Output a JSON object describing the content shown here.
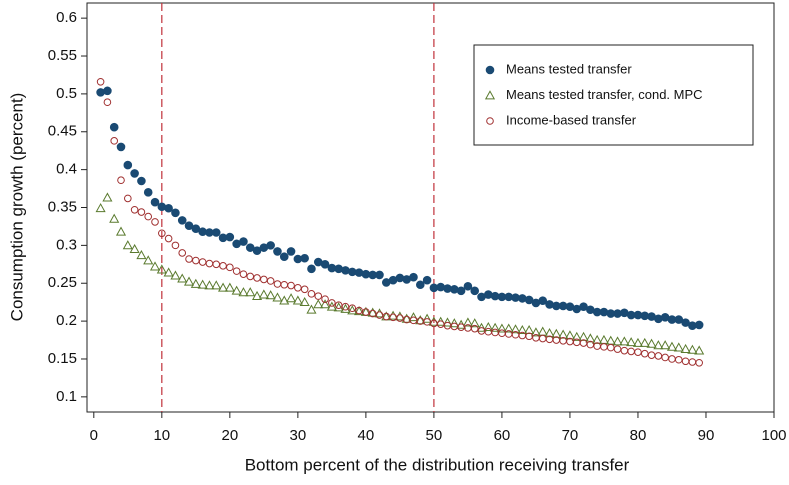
{
  "chart_data": {
    "type": "scatter",
    "x_label": "Bottom percent of the distribution receiving transfer",
    "y_label": "Consumption growth (percent)",
    "xlim": [
      -1,
      100
    ],
    "ylim": [
      0.08,
      0.62
    ],
    "xticks": [
      0,
      10,
      20,
      30,
      40,
      50,
      60,
      70,
      80,
      90,
      100
    ],
    "yticks": [
      0.1,
      0.15,
      0.2,
      0.25,
      0.3,
      0.35,
      0.4,
      0.45,
      0.5,
      0.55,
      0.6
    ],
    "vlines": [
      10,
      50
    ],
    "vline_color": "#c0303a",
    "legend": "upper-right",
    "x": [
      1,
      2,
      3,
      4,
      5,
      6,
      7,
      8,
      9,
      10,
      11,
      12,
      13,
      14,
      15,
      16,
      17,
      18,
      19,
      20,
      21,
      22,
      23,
      24,
      25,
      26,
      27,
      28,
      29,
      30,
      31,
      32,
      33,
      34,
      35,
      36,
      37,
      38,
      39,
      40,
      41,
      42,
      43,
      44,
      45,
      46,
      47,
      48,
      49,
      50,
      51,
      52,
      53,
      54,
      55,
      56,
      57,
      58,
      59,
      60,
      61,
      62,
      63,
      64,
      65,
      66,
      67,
      68,
      69,
      70,
      71,
      72,
      73,
      74,
      75,
      76,
      77,
      78,
      79,
      80,
      81,
      82,
      83,
      84,
      85,
      86,
      87,
      88,
      89
    ],
    "series": [
      {
        "name": "Means tested transfer",
        "color": "#1a4a73",
        "marker": "circle-filled",
        "values": [
          0.502,
          0.504,
          0.456,
          0.43,
          0.406,
          0.395,
          0.385,
          0.37,
          0.357,
          0.351,
          0.349,
          0.343,
          0.333,
          0.326,
          0.322,
          0.318,
          0.317,
          0.317,
          0.31,
          0.311,
          0.302,
          0.305,
          0.297,
          0.293,
          0.297,
          0.3,
          0.292,
          0.285,
          0.292,
          0.282,
          0.283,
          0.269,
          0.278,
          0.275,
          0.27,
          0.269,
          0.267,
          0.265,
          0.264,
          0.262,
          0.261,
          0.261,
          0.251,
          0.254,
          0.257,
          0.255,
          0.258,
          0.248,
          0.254,
          0.244,
          0.245,
          0.243,
          0.242,
          0.24,
          0.246,
          0.24,
          0.232,
          0.235,
          0.233,
          0.232,
          0.232,
          0.231,
          0.23,
          0.228,
          0.224,
          0.227,
          0.222,
          0.22,
          0.22,
          0.219,
          0.216,
          0.219,
          0.215,
          0.212,
          0.212,
          0.21,
          0.21,
          0.211,
          0.208,
          0.208,
          0.207,
          0.206,
          0.203,
          0.205,
          0.202,
          0.202,
          0.198,
          0.194,
          0.195
        ]
      },
      {
        "name": "Means tested transfer, cond. MPC",
        "color": "#5a7a2e",
        "marker": "triangle",
        "values": [
          0.349,
          0.363,
          0.335,
          0.318,
          0.3,
          0.295,
          0.287,
          0.28,
          0.272,
          0.268,
          0.264,
          0.26,
          0.256,
          0.252,
          0.249,
          0.248,
          0.247,
          0.247,
          0.244,
          0.244,
          0.24,
          0.238,
          0.238,
          0.233,
          0.235,
          0.234,
          0.231,
          0.227,
          0.23,
          0.227,
          0.225,
          0.215,
          0.222,
          0.222,
          0.219,
          0.218,
          0.216,
          0.214,
          0.213,
          0.212,
          0.211,
          0.21,
          0.206,
          0.207,
          0.206,
          0.203,
          0.205,
          0.201,
          0.203,
          0.199,
          0.199,
          0.198,
          0.197,
          0.195,
          0.198,
          0.197,
          0.191,
          0.192,
          0.191,
          0.19,
          0.19,
          0.189,
          0.188,
          0.188,
          0.185,
          0.186,
          0.184,
          0.183,
          0.182,
          0.181,
          0.179,
          0.179,
          0.177,
          0.175,
          0.175,
          0.174,
          0.173,
          0.173,
          0.172,
          0.171,
          0.171,
          0.17,
          0.168,
          0.168,
          0.166,
          0.165,
          0.163,
          0.162,
          0.161
        ]
      },
      {
        "name": "Income-based transfer",
        "color": "#a03030",
        "marker": "circle-open",
        "values": [
          0.516,
          0.489,
          0.438,
          0.386,
          0.362,
          0.347,
          0.344,
          0.338,
          0.331,
          0.316,
          0.309,
          0.3,
          0.29,
          0.282,
          0.28,
          0.278,
          0.276,
          0.275,
          0.273,
          0.271,
          0.266,
          0.262,
          0.259,
          0.257,
          0.255,
          0.253,
          0.249,
          0.248,
          0.247,
          0.244,
          0.242,
          0.236,
          0.233,
          0.229,
          0.224,
          0.221,
          0.219,
          0.217,
          0.214,
          0.212,
          0.21,
          0.208,
          0.206,
          0.205,
          0.204,
          0.202,
          0.201,
          0.2,
          0.199,
          0.197,
          0.196,
          0.194,
          0.193,
          0.192,
          0.191,
          0.19,
          0.187,
          0.186,
          0.185,
          0.184,
          0.183,
          0.182,
          0.181,
          0.18,
          0.178,
          0.177,
          0.176,
          0.175,
          0.174,
          0.173,
          0.172,
          0.171,
          0.169,
          0.167,
          0.166,
          0.165,
          0.163,
          0.161,
          0.16,
          0.159,
          0.157,
          0.155,
          0.154,
          0.152,
          0.15,
          0.149,
          0.147,
          0.146,
          0.145
        ]
      }
    ]
  }
}
